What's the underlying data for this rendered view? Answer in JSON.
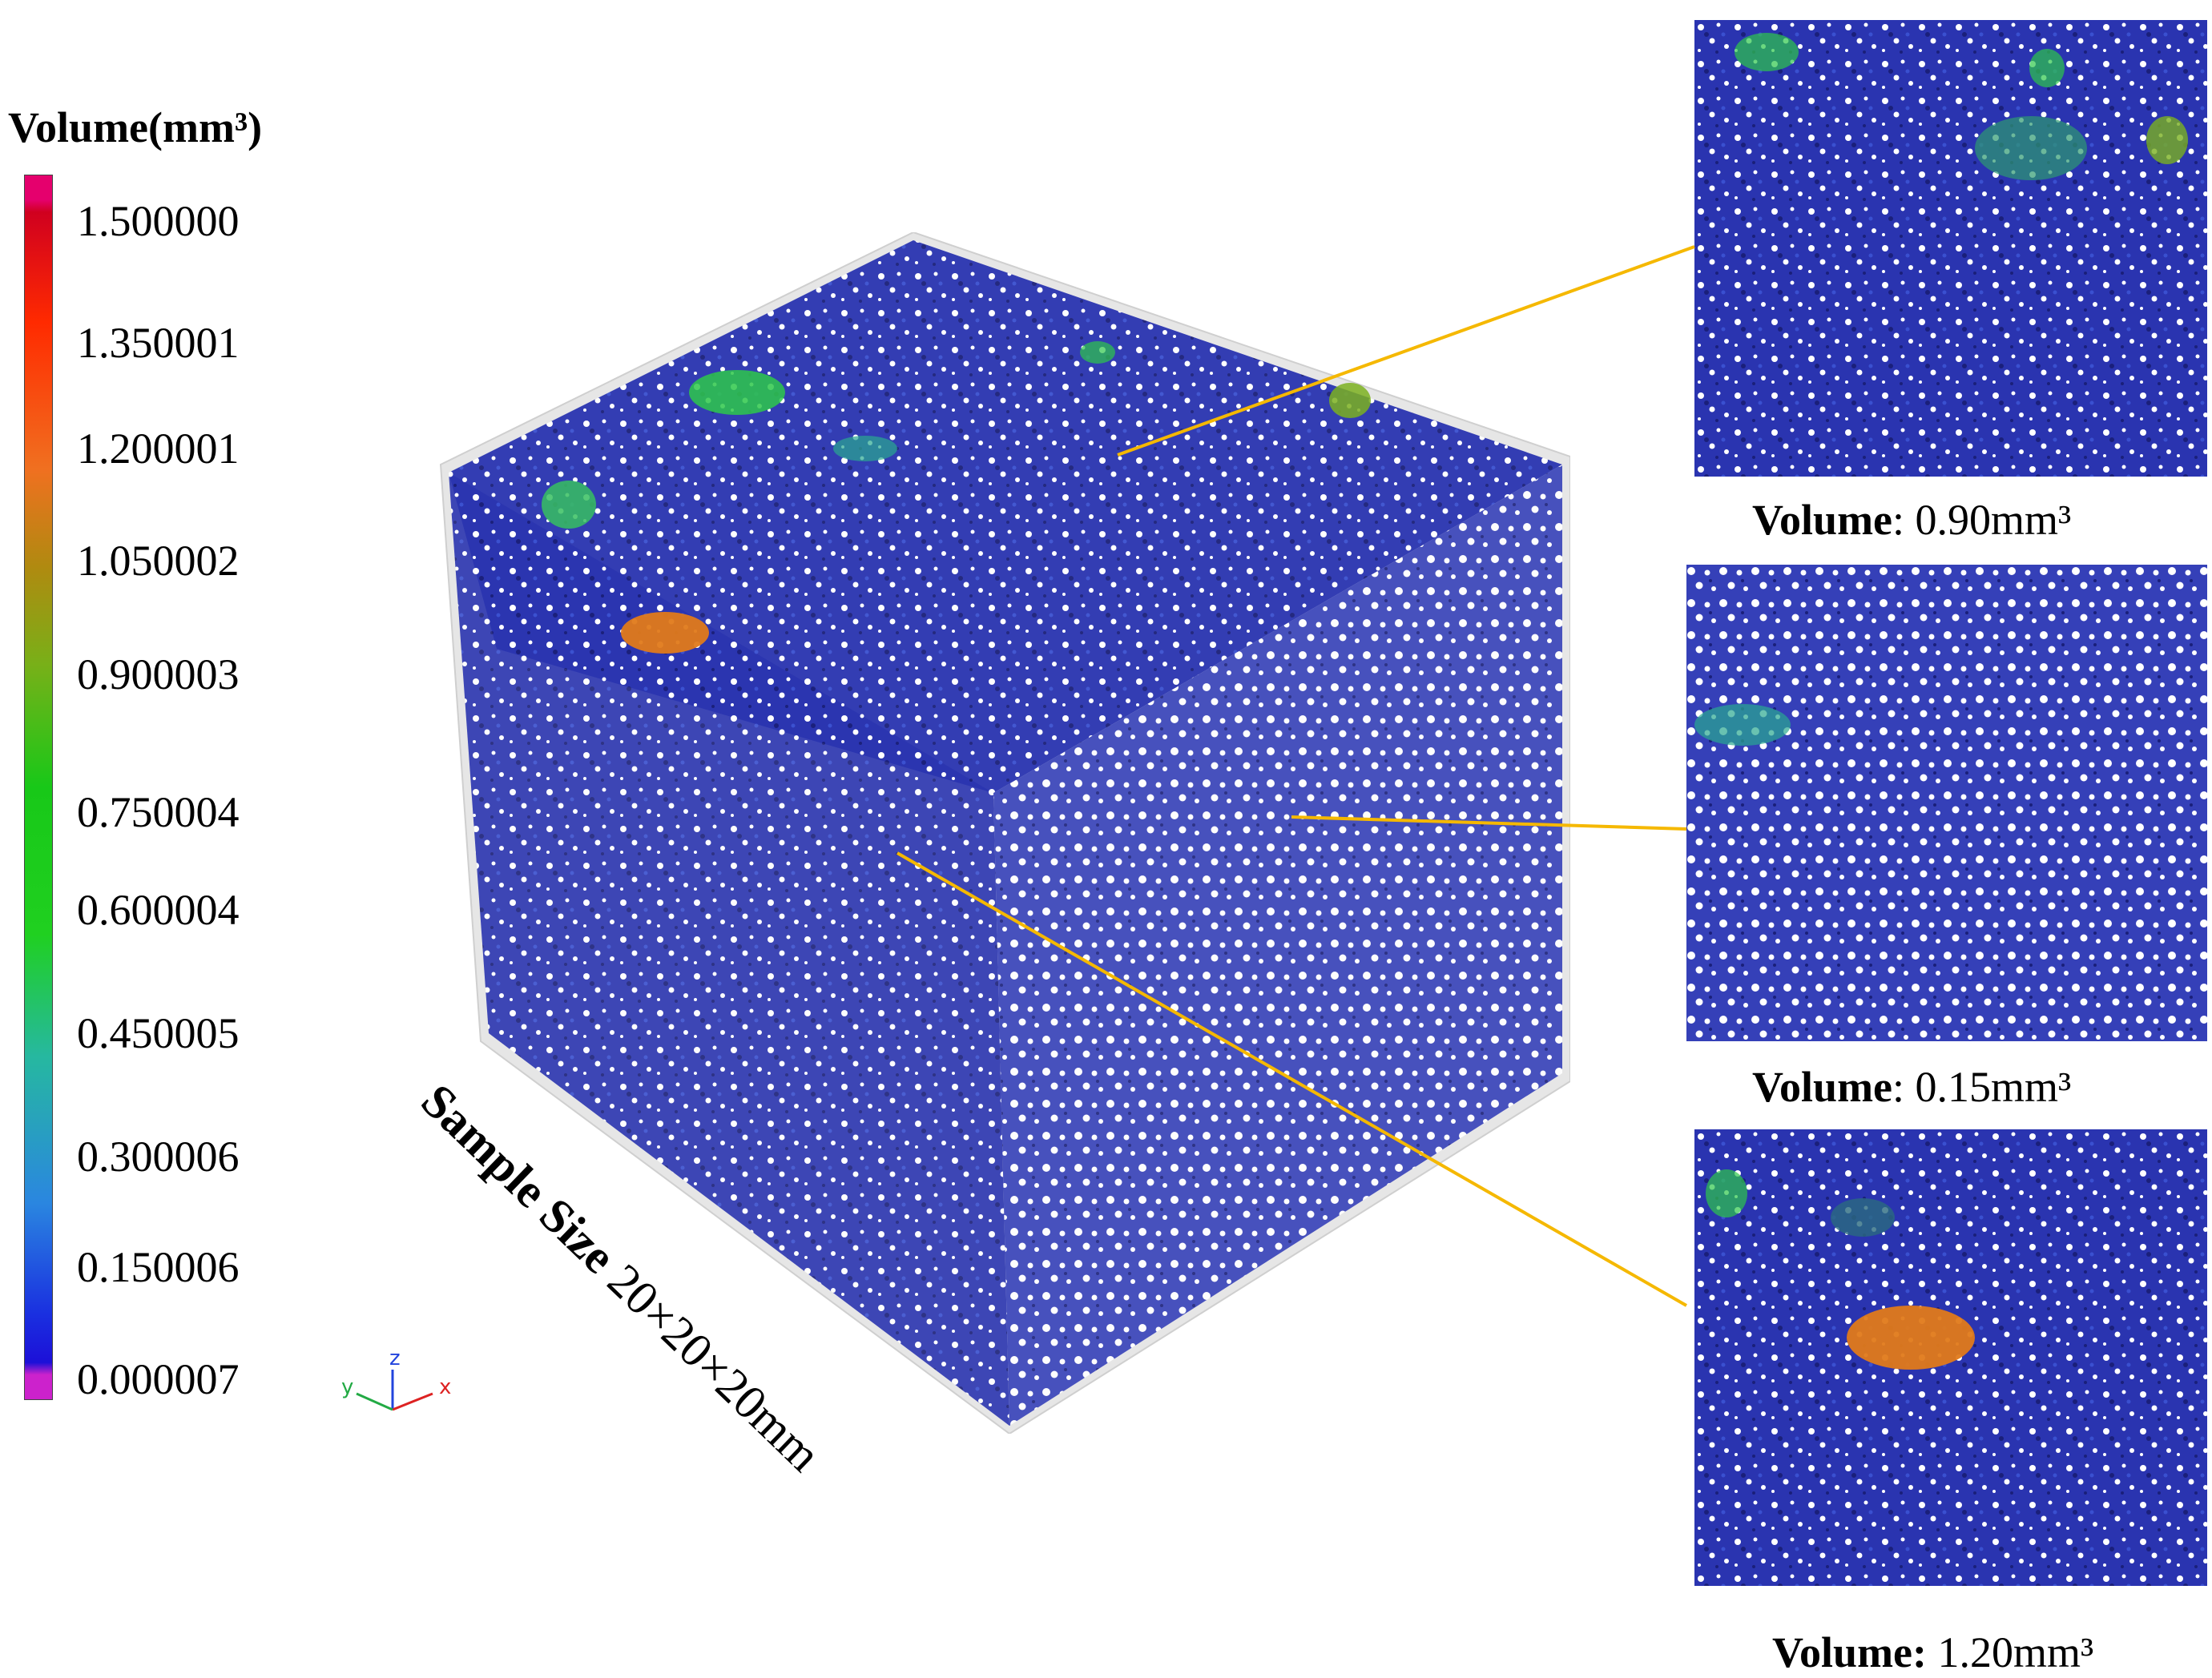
{
  "legend": {
    "title": "Volume(mm³)",
    "ticks": [
      "1.500000",
      "1.350001",
      "1.200001",
      "1.050002",
      "0.900003",
      "0.750004",
      "0.600004",
      "0.450005",
      "0.300006",
      "0.150006",
      "0.000007"
    ]
  },
  "axes_triad": {
    "x": "x",
    "y": "y",
    "z": "z"
  },
  "sample": {
    "label_bold": "Sample Size",
    "label_dims": "20×20×20mm"
  },
  "panels": [
    {
      "label": "Volume",
      "sep": ":",
      "value": "0.90mm³"
    },
    {
      "label": "Volume",
      "sep": ":",
      "value": "0.15mm³"
    },
    {
      "label": "Volume:",
      "sep": "",
      "value": "1.20mm³"
    }
  ],
  "colors": {
    "pore_blue": "#1f2bb8",
    "leader_line": "#f5b800",
    "highlight_orange": "#e07a1a",
    "highlight_green": "#2ec84a",
    "frame_grey": "#c8c8c8"
  }
}
